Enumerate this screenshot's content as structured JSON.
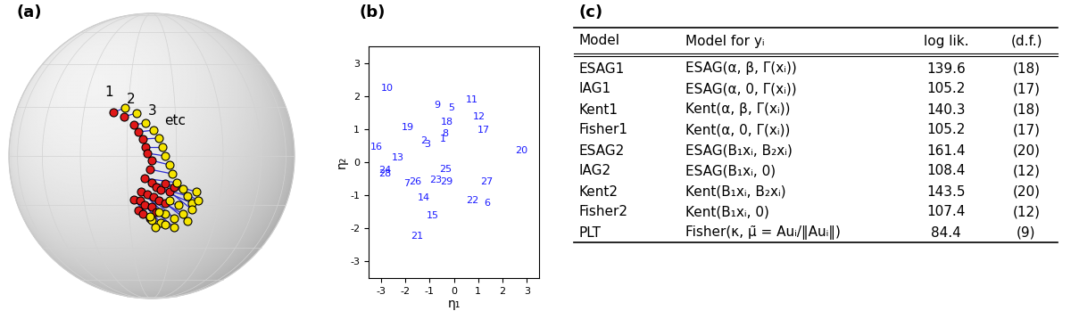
{
  "panel_labels": [
    "(a)",
    "(b)",
    "(c)"
  ],
  "chart_data": [
    {
      "type": "sphere_pairs",
      "color": "#2b2bd0",
      "annotations": [
        "1",
        "2",
        "3",
        "etc"
      ],
      "series": [
        {
          "color": "#e01818",
          "lon": [
            -16.4,
            -11.6,
            -7.4,
            -5.5,
            -3.6,
            -2.5,
            -1.8,
            0.0,
            -0.7,
            -2.9,
            0.0,
            1.8,
            3.7,
            -4.4,
            -1.8,
            0.7,
            -7.5,
            -4.9,
            5.5,
            7.4,
            3.0,
            -3.1,
            0.0,
            -5.8,
            9.2,
            5.7,
            1.9,
            -3.9,
            -0.8
          ],
          "lat": [
            17.8,
            16.0,
            12.6,
            9.7,
            6.8,
            3.6,
            1.1,
            -1.8,
            -5.4,
            -9.0,
            -10.8,
            -12.6,
            -13.7,
            -14.5,
            -15.6,
            -16.7,
            -17.8,
            -18.2,
            -11.2,
            -14.5,
            -18.2,
            -20.1,
            -20.9,
            -22.4,
            -12.6,
            -19.3,
            -23.2,
            -24.0,
            -25.9
          ]
        },
        {
          "color": "#f5e400",
          "lon": [
            -11.5,
            -6.4,
            -2.6,
            0.7,
            2.9,
            4.3,
            5.4,
            7.2,
            8.3,
            10.3,
            13.0,
            15.1,
            17.3,
            5.9,
            10.0,
            13.8,
            0.0,
            4.1,
            18.8,
            17.6,
            11.5,
            7.6,
            3.1,
            -0.8,
            20.0,
            16.3,
            10.4,
            1.8,
            6.1
          ],
          "lat": [
            19.7,
            17.5,
            13.4,
            10.4,
            7.2,
            3.6,
            0.0,
            -3.6,
            -7.2,
            -10.8,
            -13.4,
            -16.3,
            -19.3,
            -24.0,
            -25.9,
            -24.0,
            -26.7,
            -28.0,
            -14.5,
            -22.0,
            -20.1,
            -18.2,
            -23.2,
            -25.2,
            -18.2,
            -27.1,
            -30.0,
            -30.0,
            -28.8
          ]
        }
      ]
    },
    {
      "type": "scatter",
      "x_label": "η₁",
      "y_label": "η₂",
      "xlim": [
        -3.5,
        3.5
      ],
      "ylim": [
        -3.5,
        3.5
      ],
      "xticks": [
        -3,
        -2,
        -1,
        0,
        1,
        2,
        3
      ],
      "yticks": [
        -3,
        -2,
        -1,
        0,
        1,
        2,
        3
      ],
      "color": "#1a1aff",
      "marker": "none",
      "point_labels": [
        "10",
        "9",
        "5",
        "11",
        "18",
        "12",
        "8",
        "1",
        "17",
        "19",
        "2",
        "3",
        "16",
        "20",
        "13",
        "24",
        "28",
        "25",
        "26",
        "7",
        "23",
        "29",
        "27",
        "14",
        "22",
        "6",
        "15",
        "21"
      ],
      "x": [
        -2.72,
        -0.7,
        -0.1,
        0.73,
        -0.28,
        1.05,
        -0.35,
        -0.45,
        1.22,
        -1.88,
        -1.25,
        -1.08,
        -3.17,
        2.79,
        -2.3,
        -2.82,
        -2.82,
        -0.35,
        -1.6,
        -1.92,
        -0.73,
        -0.31,
        1.36,
        -1.22,
        0.77,
        1.36,
        -0.87,
        -1.5
      ],
      "y": [
        2.23,
        1.72,
        1.63,
        1.88,
        1.2,
        1.36,
        0.87,
        0.71,
        0.98,
        1.04,
        0.65,
        0.54,
        0.46,
        0.35,
        0.14,
        -0.25,
        -0.35,
        -0.22,
        -0.6,
        -0.65,
        -0.54,
        -0.6,
        -0.6,
        -1.09,
        -1.17,
        -1.25,
        -1.61,
        -2.23
      ]
    }
  ],
  "table": {
    "header": [
      "Model",
      "Model for yᵢ",
      "log lik.",
      "(d.f.)"
    ],
    "rows": [
      [
        "ESAG1",
        "ESAG(α, β, Γ(xᵢ))",
        139.6,
        "(18)"
      ],
      [
        "IAG1",
        "ESAG(α, 0, Γ(xᵢ))",
        105.2,
        "(17)"
      ],
      [
        "Kent1",
        "Kent(α, β, Γ(xᵢ))",
        140.3,
        "(18)"
      ],
      [
        "Fisher1",
        "Kent(α, 0, Γ(xᵢ))",
        105.2,
        "(17)"
      ],
      [
        "ESAG2",
        "ESAG(B₁xᵢ, B₂xᵢ)",
        161.4,
        "(20)"
      ],
      [
        "IAG2",
        "ESAG(B₁xᵢ, 0)",
        108.4,
        "(12)"
      ],
      [
        "Kent2",
        "Kent(B₁xᵢ, B₂xᵢ)",
        143.5,
        "(20)"
      ],
      [
        "Fisher2",
        "Kent(B₁xᵢ, 0)",
        107.4,
        "(12)"
      ],
      [
        "PLT",
        "Fisher(κ, μ̃ = Auᵢ/‖Auᵢ‖)",
        84.4,
        "(9)"
      ]
    ]
  }
}
